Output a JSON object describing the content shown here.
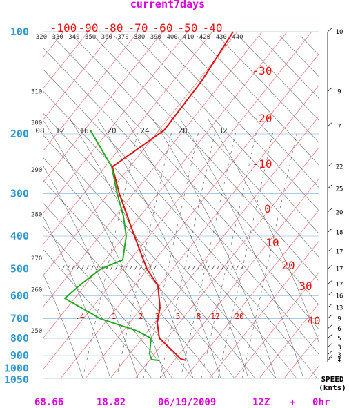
{
  "title": "current7days",
  "chart_data": {
    "type": "line",
    "pressure_labels": [
      "100",
      "200",
      "300",
      "400",
      "500",
      "600",
      "700",
      "800",
      "900",
      "1000",
      "1050"
    ],
    "pressure_ticks": [
      100,
      200,
      300,
      400,
      500,
      600,
      700,
      800,
      900,
      1000,
      1050
    ],
    "temp_top_labels": [
      "-100",
      "-90",
      "-80",
      "-70",
      "-60",
      "-50",
      "-40"
    ],
    "temp_top_values": [
      -100,
      -90,
      -80,
      -70,
      -60,
      -50,
      -40
    ],
    "temp_right_labels": [
      "-30",
      "-20",
      "-10",
      "0",
      "10",
      "20",
      "30",
      "40"
    ],
    "temp_right_values": [
      -30,
      -20,
      -10,
      0,
      10,
      20,
      30,
      40
    ],
    "theta_top_labels": [
      "320",
      "330",
      "340",
      "350",
      "360",
      "370",
      "380",
      "390",
      "400",
      "410",
      "420",
      "430",
      "440"
    ],
    "theta_left_labels": [
      {
        "label": "310",
        "p": 150
      },
      {
        "label": "300",
        "p": 185
      },
      {
        "label": "290",
        "p": 255
      },
      {
        "label": "280",
        "p": 345
      },
      {
        "label": "270",
        "p": 465
      },
      {
        "label": "260",
        "p": 575
      },
      {
        "label": "250",
        "p": 760
      }
    ],
    "mixing_ratio_labels": [
      {
        "label": ".4",
        "x": 116
      },
      {
        "label": "1",
        "x": 165
      },
      {
        "label": "2",
        "x": 204
      },
      {
        "label": "3",
        "x": 228
      },
      {
        "label": "5",
        "x": 258
      },
      {
        "label": "8",
        "x": 288
      },
      {
        "label": "12",
        "x": 312
      },
      {
        "label": "20",
        "x": 347
      }
    ],
    "wetbulb_labels": [
      {
        "label": "08",
        "x": 58
      },
      {
        "label": "12",
        "x": 87
      },
      {
        "label": "16",
        "x": 122
      },
      {
        "label": "20",
        "x": 162
      },
      {
        "label": "24",
        "x": 210
      },
      {
        "label": "28",
        "x": 265
      },
      {
        "label": "32",
        "x": 323
      }
    ],
    "series": [
      {
        "name": "",
        "color": "#e01010",
        "points": [
          {
            "p": 100,
            "x": 338
          },
          {
            "p": 140,
            "x": 292
          },
          {
            "p": 195,
            "x": 238
          },
          {
            "p": 250,
            "x": 163
          },
          {
            "p": 300,
            "x": 173
          },
          {
            "p": 400,
            "x": 195
          },
          {
            "p": 500,
            "x": 213
          },
          {
            "p": 560,
            "x": 229
          },
          {
            "p": 650,
            "x": 232
          },
          {
            "p": 720,
            "x": 228
          },
          {
            "p": 800,
            "x": 231
          },
          {
            "p": 870,
            "x": 250
          },
          {
            "p": 920,
            "x": 262
          },
          {
            "p": 930,
            "x": 270
          }
        ]
      },
      {
        "name": "",
        "color": "#22aa22",
        "points": [
          {
            "p": 195,
            "x": 131
          },
          {
            "p": 250,
            "x": 162
          },
          {
            "p": 300,
            "x": 170
          },
          {
            "p": 350,
            "x": 179
          },
          {
            "p": 400,
            "x": 183
          },
          {
            "p": 470,
            "x": 178
          },
          {
            "p": 500,
            "x": 146
          },
          {
            "p": 560,
            "x": 115
          },
          {
            "p": 610,
            "x": 94
          },
          {
            "p": 700,
            "x": 145
          },
          {
            "p": 760,
            "x": 198
          },
          {
            "p": 800,
            "x": 219
          },
          {
            "p": 840,
            "x": 218
          },
          {
            "p": 890,
            "x": 217
          },
          {
            "p": 925,
            "x": 220
          },
          {
            "p": 930,
            "x": 231
          }
        ]
      }
    ],
    "wind_speed": {
      "label_line1": "SPEED",
      "label_line2": "(knts)",
      "labels": [
        {
          "p": 100,
          "v": "10"
        },
        {
          "p": 150,
          "v": "9"
        },
        {
          "p": 190,
          "v": "7"
        },
        {
          "p": 250,
          "v": "22"
        },
        {
          "p": 290,
          "v": "25"
        },
        {
          "p": 340,
          "v": "20"
        },
        {
          "p": 390,
          "v": "18"
        },
        {
          "p": 445,
          "v": "17"
        },
        {
          "p": 500,
          "v": "17"
        },
        {
          "p": 555,
          "v": "17"
        },
        {
          "p": 600,
          "v": "16"
        },
        {
          "p": 650,
          "v": "13"
        },
        {
          "p": 700,
          "v": "9"
        },
        {
          "p": 750,
          "v": "6"
        },
        {
          "p": 800,
          "v": "5"
        },
        {
          "p": 850,
          "v": "3"
        },
        {
          "p": 895,
          "v": "3"
        },
        {
          "p": 920,
          "v": "2"
        },
        {
          "p": 930,
          "v": "1"
        }
      ]
    }
  },
  "footer": {
    "value1": "68.66",
    "value2": "18.82",
    "date": "06/19/2009",
    "time": "12Z",
    "plus": "+",
    "forecast": "0hr"
  }
}
